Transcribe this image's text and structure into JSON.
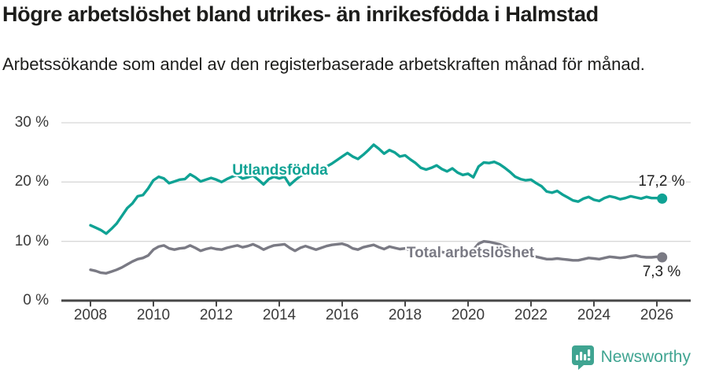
{
  "title": "Högre arbetslöshet bland utrikes- än inrikesfödda i Halmstad",
  "subtitle": "Arbetssökande som andel av den registerbaserade arbetskraften månad för månad.",
  "footer": {
    "brand": "Newsworthy"
  },
  "colors": {
    "series_foreign": "#0fa294",
    "series_total": "#7a7a84",
    "gridline": "#d8d8d8",
    "axis": "#474747",
    "brand_teal": "#3fa491"
  },
  "chart_data": {
    "type": "line",
    "title": "Högre arbetslöshet bland utrikes- än inrikesfödda i Halmstad",
    "subtitle": "Arbetssökande som andel av den registerbaserade arbetskraften månad för månad.",
    "unit": "%",
    "grid": "horizontal",
    "legend": "inline-labels",
    "ylim": [
      0,
      31.5
    ],
    "xlim": [
      2007.1,
      2027.1
    ],
    "x_start_year": 2008,
    "points_per_year": 6,
    "yticks": [
      {
        "value": 0,
        "label": "0 %"
      },
      {
        "value": 10,
        "label": "10 %"
      },
      {
        "value": 20,
        "label": "20 %"
      },
      {
        "value": 30,
        "label": "30 %"
      }
    ],
    "xticks": [
      2008,
      2010,
      2012,
      2014,
      2016,
      2018,
      2020,
      2022,
      2024,
      2026
    ],
    "series": [
      {
        "name": "Utlandsfödda",
        "color": "#0fa294",
        "end_label": "17,2 %",
        "end_value": 17.2,
        "values": [
          12.7,
          12.3,
          11.9,
          11.3,
          12.1,
          13.0,
          14.3,
          15.6,
          16.4,
          17.6,
          17.8,
          18.9,
          20.3,
          20.9,
          20.6,
          19.8,
          20.1,
          20.4,
          20.5,
          21.3,
          20.8,
          20.1,
          20.4,
          20.7,
          20.4,
          20.0,
          20.5,
          20.9,
          21.2,
          20.6,
          20.8,
          21.1,
          20.4,
          19.6,
          20.5,
          20.9,
          20.6,
          20.9,
          19.5,
          20.3,
          21.0,
          21.4,
          21.6,
          21.3,
          21.9,
          22.6,
          23.1,
          23.7,
          24.3,
          24.9,
          24.3,
          23.9,
          24.6,
          25.4,
          26.3,
          25.6,
          24.8,
          25.4,
          25.0,
          24.3,
          24.5,
          23.8,
          23.2,
          22.4,
          22.1,
          22.4,
          22.8,
          22.2,
          21.8,
          22.3,
          21.6,
          21.2,
          21.4,
          20.8,
          22.6,
          23.3,
          23.2,
          23.4,
          23.0,
          22.4,
          21.7,
          20.9,
          20.5,
          20.3,
          20.4,
          19.8,
          19.3,
          18.4,
          18.2,
          18.5,
          17.9,
          17.4,
          16.9,
          16.7,
          17.2,
          17.5,
          17.0,
          16.8,
          17.3,
          17.6,
          17.4,
          17.1,
          17.3,
          17.6,
          17.4,
          17.2,
          17.5,
          17.3,
          17.3,
          17.2
        ]
      },
      {
        "name": "Total arbetslöshet",
        "color": "#7a7a84",
        "end_label": "7,3 %",
        "end_value": 7.3,
        "values": [
          5.2,
          5.0,
          4.7,
          4.6,
          4.9,
          5.2,
          5.6,
          6.1,
          6.6,
          7.0,
          7.2,
          7.6,
          8.6,
          9.1,
          9.3,
          8.8,
          8.6,
          8.8,
          8.9,
          9.3,
          8.9,
          8.4,
          8.7,
          8.9,
          8.7,
          8.6,
          8.9,
          9.1,
          9.3,
          9.0,
          9.2,
          9.5,
          9.1,
          8.6,
          9.0,
          9.3,
          9.4,
          9.5,
          8.9,
          8.4,
          8.9,
          9.2,
          8.9,
          8.6,
          8.9,
          9.2,
          9.4,
          9.5,
          9.6,
          9.3,
          8.8,
          8.6,
          9.0,
          9.2,
          9.4,
          9.0,
          8.7,
          9.1,
          8.9,
          8.7,
          8.8,
          8.5,
          8.3,
          8.1,
          8.2,
          8.4,
          8.5,
          8.2,
          8.0,
          8.3,
          8.1,
          8.2,
          8.4,
          8.6,
          9.6,
          10.0,
          9.9,
          9.7,
          9.5,
          9.1,
          8.7,
          8.2,
          7.9,
          7.7,
          7.6,
          7.4,
          7.2,
          7.0,
          7.0,
          7.1,
          7.0,
          6.9,
          6.8,
          6.8,
          7.0,
          7.2,
          7.1,
          7.0,
          7.2,
          7.4,
          7.3,
          7.2,
          7.3,
          7.5,
          7.6,
          7.4,
          7.3,
          7.3,
          7.4,
          7.3
        ]
      }
    ]
  }
}
